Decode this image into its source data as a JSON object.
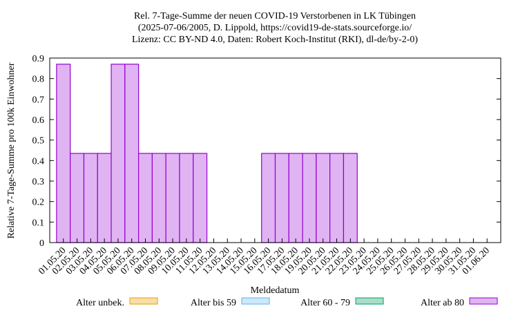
{
  "chart_data": {
    "type": "stacked_bar",
    "title": "Rel. 7-Tage-Summe der neuen COVID-19 Verstorbenen in LK Tübingen",
    "subtitle": [
      "(2025-07-06/2005, D. Lippold, https://covid19-de-stats.sourceforge.io/",
      "Lizenz: CC BY-ND 4.0, Daten: Robert Koch-Institut (RKI), dl-de/by-2-0)"
    ],
    "x_label": "Meldedatum",
    "y_label": "Relative 7-Tage-Summe pro 100k Einwohner",
    "categories": [
      "01.05.20",
      "02.05.20",
      "03.05.20",
      "04.05.20",
      "05.05.20",
      "06.05.20",
      "07.05.20",
      "08.05.20",
      "09.05.20",
      "10.05.20",
      "11.05.20",
      "12.05.20",
      "13.05.20",
      "14.05.20",
      "15.05.20",
      "16.05.20",
      "17.05.20",
      "18.05.20",
      "19.05.20",
      "20.05.20",
      "21.05.20",
      "22.05.20",
      "23.05.20",
      "24.05.20",
      "25.05.20",
      "26.05.20",
      "27.05.20",
      "28.05.20",
      "29.05.20",
      "30.05.20",
      "31.05.20",
      "01.06.20"
    ],
    "series": [
      {
        "name": "Alter unbek.",
        "color": "#f9dea6",
        "stroke": "#e69f00",
        "values": [
          0,
          0,
          0,
          0,
          0,
          0,
          0,
          0,
          0,
          0,
          0,
          0,
          0,
          0,
          0,
          0,
          0,
          0,
          0,
          0,
          0,
          0,
          0,
          0,
          0,
          0,
          0,
          0,
          0,
          0,
          0,
          0
        ]
      },
      {
        "name": "Alter bis 59",
        "color": "#cde8f8",
        "stroke": "#56b4e9",
        "values": [
          0,
          0,
          0,
          0,
          0,
          0,
          0,
          0,
          0,
          0,
          0,
          0,
          0,
          0,
          0,
          0,
          0,
          0,
          0,
          0,
          0,
          0,
          0,
          0,
          0,
          0,
          0,
          0,
          0,
          0,
          0,
          0
        ]
      },
      {
        "name": "Alter 60 - 79",
        "color": "#a8ddc7",
        "stroke": "#009e73",
        "values": [
          0,
          0,
          0,
          0,
          0,
          0,
          0,
          0,
          0,
          0,
          0,
          0,
          0,
          0,
          0,
          0,
          0,
          0,
          0,
          0,
          0,
          0,
          0,
          0,
          0,
          0,
          0,
          0,
          0,
          0,
          0,
          0
        ]
      },
      {
        "name": "Alter ab 80",
        "color": "#e0b4f2",
        "stroke": "#9400d3",
        "values": [
          0.87,
          0.435,
          0.435,
          0.435,
          0.87,
          0.87,
          0.435,
          0.435,
          0.435,
          0.435,
          0.435,
          0,
          0,
          0,
          0,
          0.435,
          0.435,
          0.435,
          0.435,
          0.435,
          0.435,
          0.435,
          0,
          0,
          0,
          0,
          0,
          0,
          0,
          0,
          0,
          0
        ]
      }
    ],
    "ylim": [
      0,
      0.9
    ],
    "yticks": [
      0,
      0.1,
      0.2,
      0.3,
      0.4,
      0.5,
      0.6,
      0.7,
      0.8,
      0.9
    ]
  }
}
